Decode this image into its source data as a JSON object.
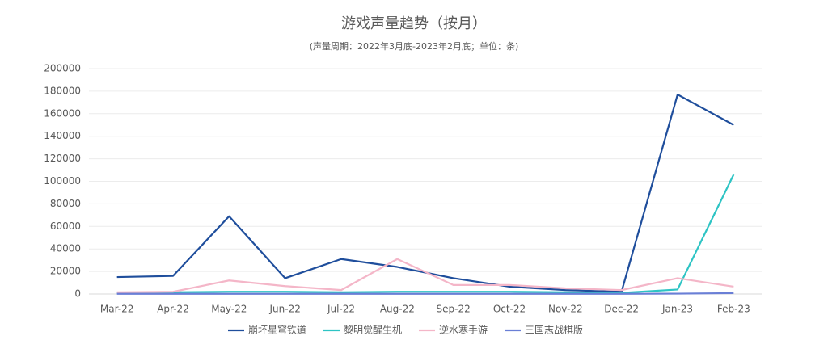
{
  "chart_data": {
    "type": "line",
    "title": "游戏声量趋势（按月）",
    "subtitle": "(声量周期：2022年3月底-2023年2月底；单位：条)",
    "categories": [
      "Mar-22",
      "Apr-22",
      "May-22",
      "Jun-22",
      "Jul-22",
      "Aug-22",
      "Sep-22",
      "Oct-22",
      "Nov-22",
      "Dec-22",
      "Jan-23",
      "Feb-23"
    ],
    "series": [
      {
        "name": "崩坏星穹铁道",
        "color": "#1f4e9c",
        "values": [
          15000,
          16000,
          69000,
          14000,
          31000,
          24000,
          14000,
          6500,
          3500,
          2000,
          177000,
          150000
        ]
      },
      {
        "name": "黎明觉醒生机",
        "color": "#2ec4c4",
        "values": [
          1000,
          1500,
          2000,
          2000,
          1500,
          2000,
          2000,
          2000,
          1500,
          1000,
          4000,
          106000
        ]
      },
      {
        "name": "逆水寒手游",
        "color": "#f4b6c8",
        "values": [
          1500,
          2000,
          12000,
          7000,
          3500,
          31000,
          8000,
          8000,
          5000,
          3500,
          14000,
          6500
        ]
      },
      {
        "name": "三国志战棋版",
        "color": "#6a7fd6",
        "values": [
          200,
          200,
          200,
          200,
          200,
          200,
          200,
          200,
          200,
          200,
          300,
          800
        ]
      }
    ],
    "ylim": [
      0,
      200000
    ],
    "yticks": [
      0,
      20000,
      40000,
      60000,
      80000,
      100000,
      120000,
      140000,
      160000,
      180000,
      200000
    ],
    "grid": true,
    "legend": "bottom"
  }
}
